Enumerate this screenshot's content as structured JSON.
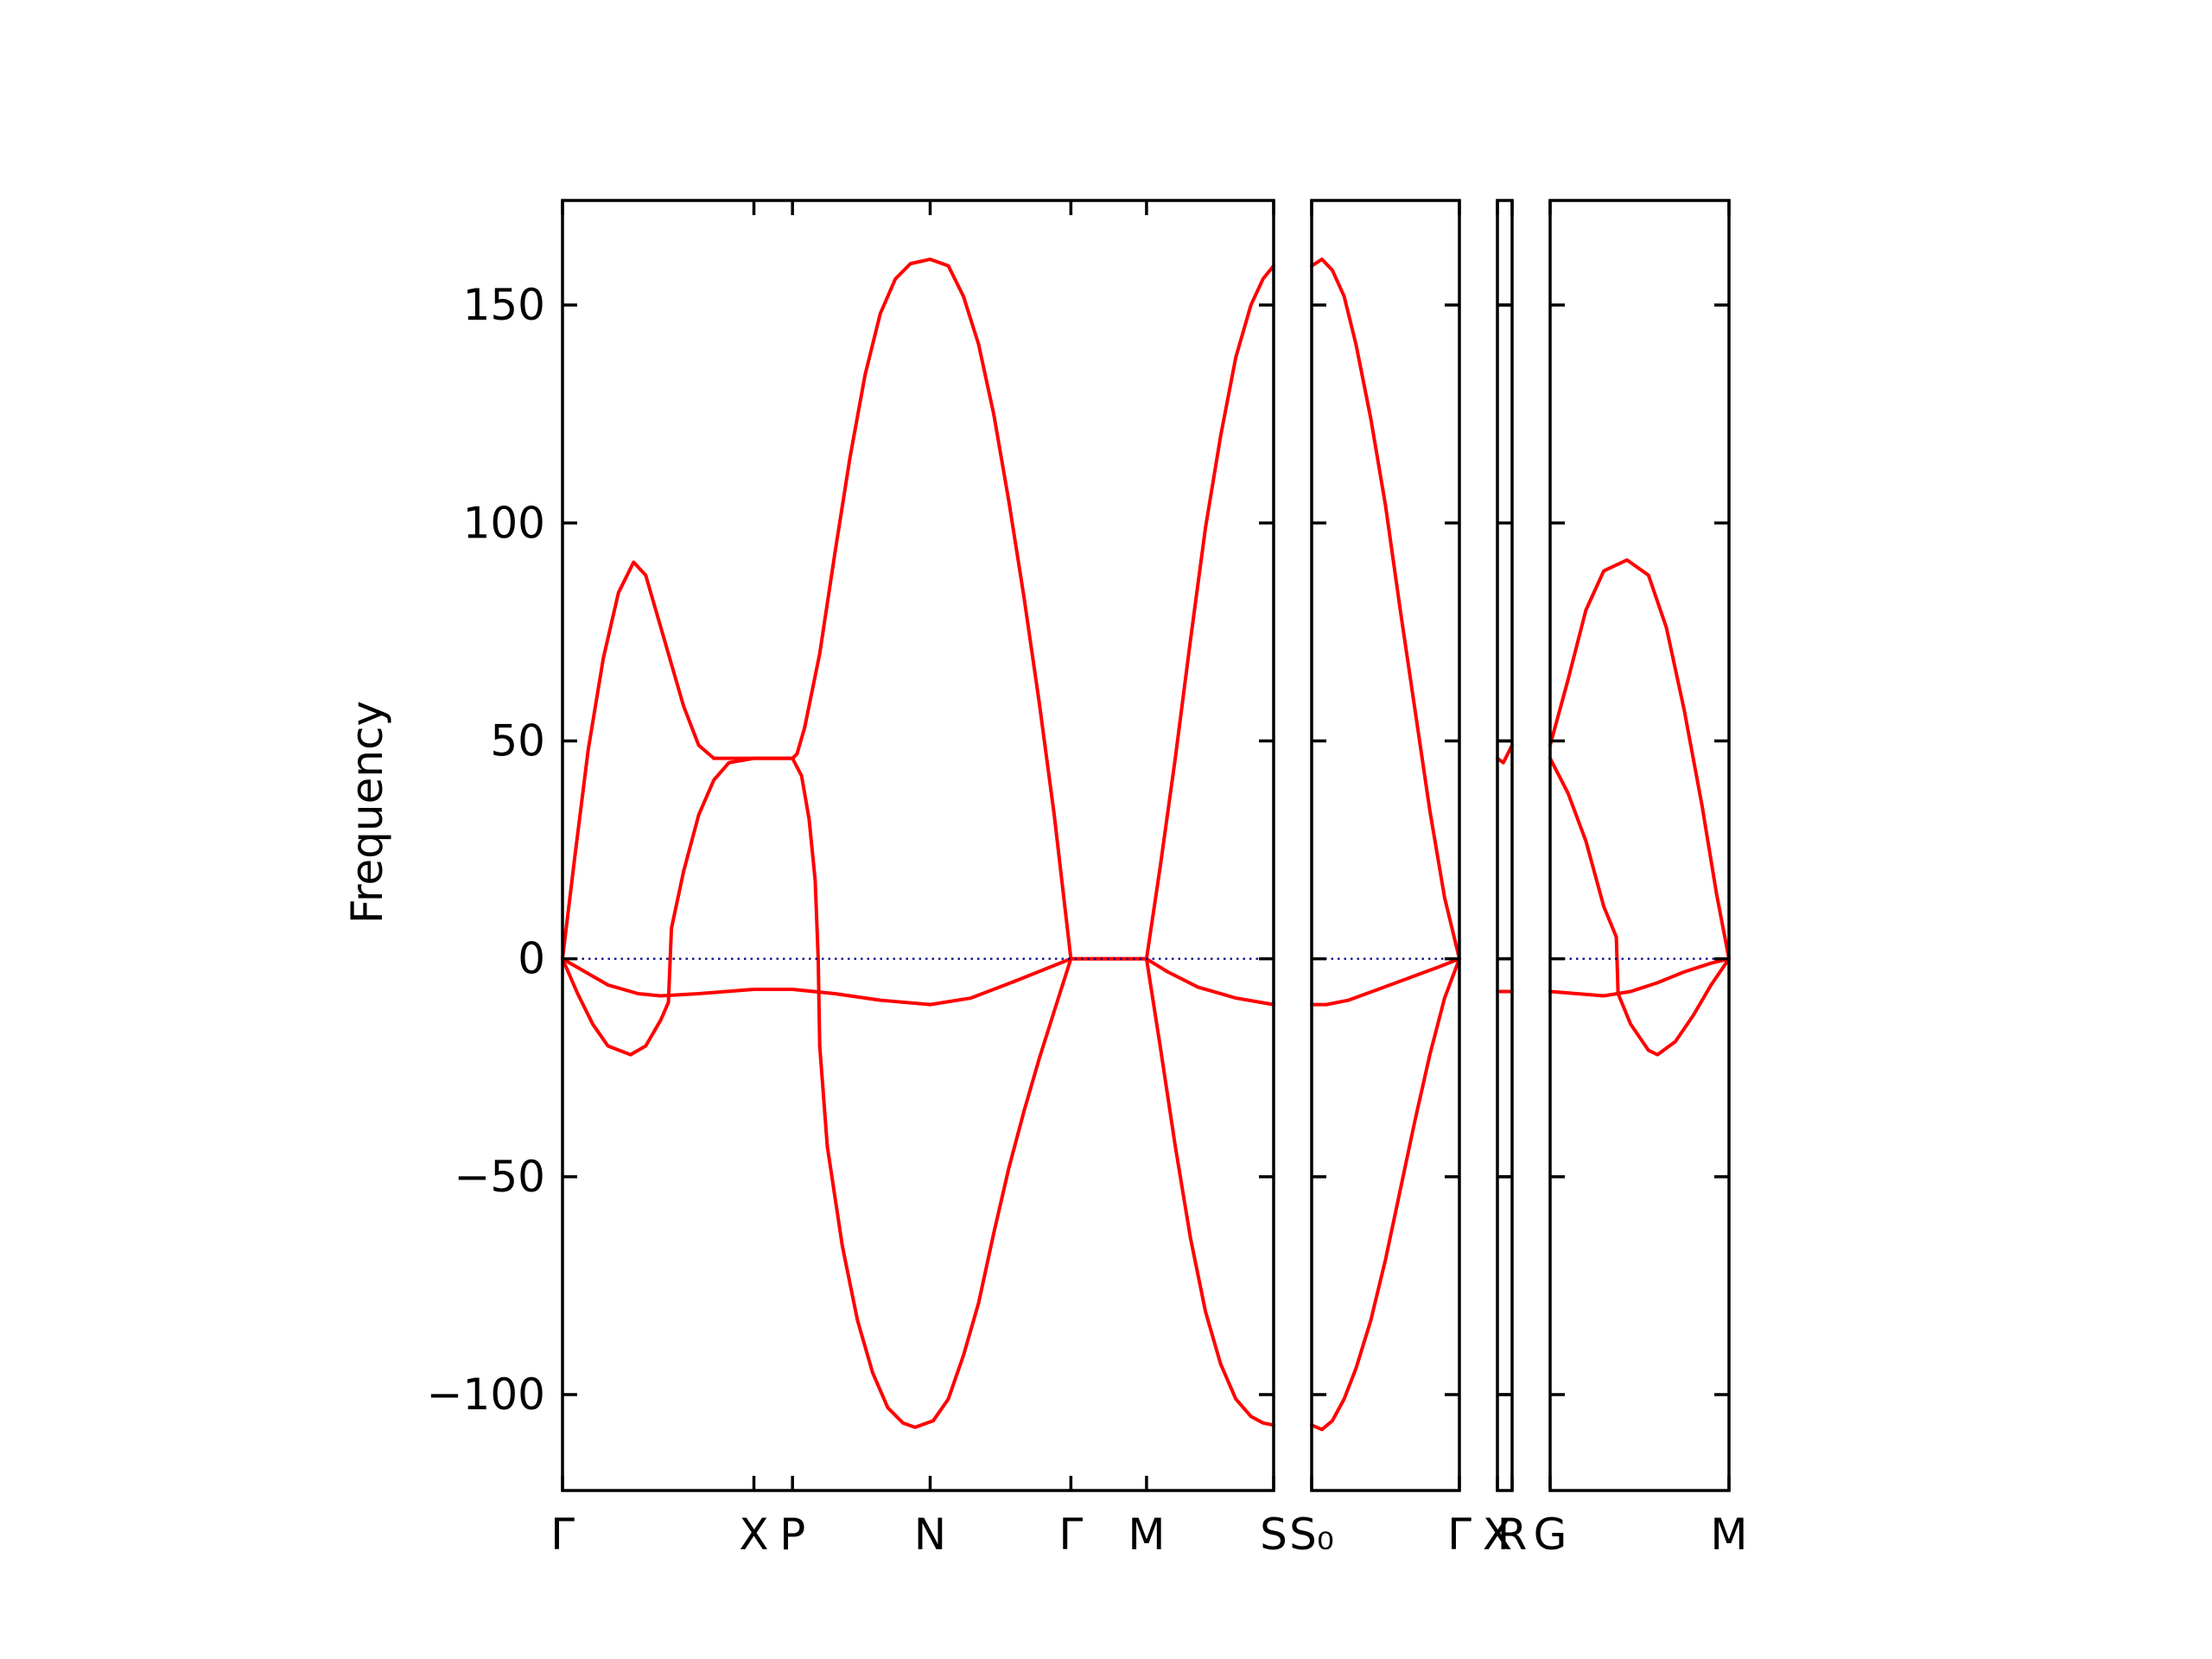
{
  "chart_data": {
    "type": "line",
    "title": "",
    "xlabel": "",
    "ylabel": "Frequency",
    "ylim": [
      -122,
      174
    ],
    "yticks": [
      -100,
      -50,
      0,
      50,
      100,
      150
    ],
    "ytick_labels": [
      "−100",
      "−50",
      "0",
      "50",
      "100",
      "150"
    ],
    "grid": false,
    "zero_line": true,
    "colors": {
      "bands": "#ff0000",
      "zero_line": "#000080",
      "axes": "#000000"
    },
    "panels": [
      {
        "xlim": [
          0,
          4.7
        ],
        "ticks": [
          {
            "x": 0,
            "label": "Γ"
          },
          {
            "x": 1.265,
            "label": "X"
          },
          {
            "x": 1.52,
            "label": "P"
          },
          {
            "x": 2.43,
            "label": "N"
          },
          {
            "x": 3.36,
            "label": "Γ"
          },
          {
            "x": 3.86,
            "label": "M"
          },
          {
            "x": 4.7,
            "label": "S"
          }
        ],
        "series": [
          {
            "points": [
              [
                0,
                0
              ],
              [
                0.08,
                23
              ],
              [
                0.17,
                48
              ],
              [
                0.27,
                69
              ],
              [
                0.37,
                84
              ],
              [
                0.47,
                91
              ],
              [
                0.55,
                88
              ],
              [
                0.65,
                76
              ],
              [
                0.8,
                58
              ],
              [
                0.9,
                49
              ],
              [
                1.0,
                46
              ]
            ]
          },
          {
            "points": [
              [
                0,
                0
              ],
              [
                0.1,
                -8
              ],
              [
                0.2,
                -15
              ],
              [
                0.3,
                -20
              ],
              [
                0.45,
                -22
              ],
              [
                0.55,
                -20
              ],
              [
                0.65,
                -14
              ],
              [
                0.7,
                -10
              ],
              [
                0.72,
                7
              ],
              [
                0.8,
                20
              ],
              [
                0.9,
                33
              ],
              [
                1.0,
                41
              ],
              [
                1.1,
                45
              ],
              [
                1.265,
                46
              ],
              [
                1.52,
                46
              ],
              [
                1.58,
                42
              ],
              [
                1.63,
                32
              ],
              [
                1.67,
                18
              ],
              [
                1.69,
                0
              ],
              [
                1.7,
                -20
              ]
            ]
          },
          {
            "points": [
              [
                1.0,
                46
              ],
              [
                1.265,
                46
              ],
              [
                1.52,
                46
              ],
              [
                1.55,
                47
              ],
              [
                1.6,
                53
              ],
              [
                1.7,
                70
              ],
              [
                1.8,
                93
              ],
              [
                1.9,
                115
              ],
              [
                2.0,
                134
              ],
              [
                2.1,
                148
              ],
              [
                2.2,
                156
              ],
              [
                2.3,
                159.5
              ],
              [
                2.43,
                160.5
              ],
              [
                2.55,
                159
              ],
              [
                2.65,
                152
              ],
              [
                2.75,
                141
              ],
              [
                2.85,
                125
              ],
              [
                2.95,
                105
              ],
              [
                3.05,
                83
              ],
              [
                3.15,
                59
              ],
              [
                3.25,
                33
              ],
              [
                3.36,
                0
              ]
            ]
          },
          {
            "points": [
              [
                1.7,
                -20
              ],
              [
                1.75,
                -43
              ],
              [
                1.85,
                -66
              ],
              [
                1.95,
                -83
              ],
              [
                2.05,
                -95
              ],
              [
                2.15,
                -103
              ],
              [
                2.25,
                -106.5
              ],
              [
                2.33,
                -107.5
              ],
              [
                2.45,
                -106
              ],
              [
                2.55,
                -101
              ],
              [
                2.65,
                -91
              ],
              [
                2.75,
                -79
              ],
              [
                2.85,
                -63
              ],
              [
                2.95,
                -48
              ],
              [
                3.05,
                -35
              ],
              [
                3.15,
                -23
              ],
              [
                3.25,
                -12
              ],
              [
                3.36,
                0
              ]
            ]
          },
          {
            "points": [
              [
                0,
                0
              ],
              [
                0.15,
                -3
              ],
              [
                0.3,
                -6
              ],
              [
                0.5,
                -8
              ],
              [
                0.65,
                -8.5
              ],
              [
                0.9,
                -8
              ],
              [
                1.265,
                -7
              ],
              [
                1.52,
                -7
              ],
              [
                1.8,
                -8
              ],
              [
                2.1,
                -9.5
              ],
              [
                2.43,
                -10.5
              ],
              [
                2.7,
                -9
              ],
              [
                3.0,
                -5
              ],
              [
                3.36,
                0
              ],
              [
                3.86,
                0
              ],
              [
                4.0,
                -3
              ],
              [
                4.2,
                -6.5
              ],
              [
                4.45,
                -9
              ],
              [
                4.7,
                -10.5
              ]
            ]
          },
          {
            "points": [
              [
                3.36,
                0
              ],
              [
                3.86,
                0
              ],
              [
                3.95,
                21
              ],
              [
                4.05,
                46
              ],
              [
                4.15,
                73
              ],
              [
                4.25,
                99
              ],
              [
                4.35,
                120
              ],
              [
                4.45,
                138
              ],
              [
                4.55,
                150
              ],
              [
                4.63,
                156
              ],
              [
                4.7,
                159
              ]
            ]
          },
          {
            "points": [
              [
                3.86,
                0
              ],
              [
                3.95,
                -20
              ],
              [
                4.05,
                -43
              ],
              [
                4.15,
                -64
              ],
              [
                4.25,
                -81
              ],
              [
                4.35,
                -93
              ],
              [
                4.45,
                -101
              ],
              [
                4.55,
                -105
              ],
              [
                4.63,
                -106.5
              ],
              [
                4.7,
                -107
              ]
            ]
          },
          {
            "points": [
              [
                0,
                0
              ],
              [
                4.7,
                0
              ]
            ],
            "role": "zero-line"
          }
        ]
      },
      {
        "xlim": [
          0,
          1
        ],
        "ticks": [
          {
            "x": 0,
            "label": "S₀"
          },
          {
            "x": 1,
            "label": "Γ"
          }
        ],
        "series": [
          {
            "points": [
              [
                0,
                159
              ],
              [
                0.07,
                160.5
              ],
              [
                0.14,
                158
              ],
              [
                0.22,
                152
              ],
              [
                0.3,
                141
              ],
              [
                0.4,
                124
              ],
              [
                0.5,
                104
              ],
              [
                0.6,
                80
              ],
              [
                0.7,
                57
              ],
              [
                0.8,
                34
              ],
              [
                0.9,
                14
              ],
              [
                1,
                0
              ]
            ]
          },
          {
            "points": [
              [
                0,
                -107
              ],
              [
                0.07,
                -108
              ],
              [
                0.14,
                -106
              ],
              [
                0.22,
                -101
              ],
              [
                0.3,
                -94
              ],
              [
                0.4,
                -83
              ],
              [
                0.5,
                -69
              ],
              [
                0.6,
                -53
              ],
              [
                0.7,
                -37
              ],
              [
                0.8,
                -22
              ],
              [
                0.9,
                -9
              ],
              [
                1,
                0
              ]
            ]
          },
          {
            "points": [
              [
                0,
                -10.5
              ],
              [
                0.1,
                -10.5
              ],
              [
                0.25,
                -9.5
              ],
              [
                0.45,
                -7
              ],
              [
                0.65,
                -4.5
              ],
              [
                0.85,
                -2
              ],
              [
                1,
                0
              ]
            ]
          },
          {
            "points": [
              [
                0,
                0
              ],
              [
                1,
                0
              ]
            ],
            "role": "zero-line"
          }
        ]
      },
      {
        "xlim": [
          0,
          1
        ],
        "ticks": [
          {
            "x": 0,
            "label": "X"
          },
          {
            "x": 1,
            "label": "R"
          }
        ],
        "series": [
          {
            "points": [
              [
                0,
                46
              ],
              [
                0.4,
                45
              ],
              [
                1,
                49
              ]
            ]
          },
          {
            "points": [
              [
                0,
                -7.5
              ],
              [
                1,
                -7.5
              ]
            ]
          },
          {
            "points": [
              [
                0,
                0
              ],
              [
                1,
                0
              ]
            ],
            "role": "zero-line"
          }
        ]
      },
      {
        "xlim": [
          0,
          1
        ],
        "ticks": [
          {
            "x": 0,
            "label": "G"
          },
          {
            "x": 1,
            "label": "M"
          }
        ],
        "series": [
          {
            "points": [
              [
                0,
                49
              ],
              [
                0.1,
                64
              ],
              [
                0.2,
                80
              ],
              [
                0.3,
                89
              ],
              [
                0.43,
                91.5
              ],
              [
                0.55,
                88
              ],
              [
                0.65,
                76
              ],
              [
                0.75,
                57
              ],
              [
                0.85,
                35
              ],
              [
                0.93,
                15
              ],
              [
                1,
                0
              ]
            ]
          },
          {
            "points": [
              [
                0,
                46
              ],
              [
                0.1,
                38
              ],
              [
                0.2,
                27
              ],
              [
                0.3,
                12
              ],
              [
                0.37,
                5
              ],
              [
                0.38,
                -8
              ]
            ]
          },
          {
            "points": [
              [
                0,
                -7.5
              ],
              [
                0.15,
                -8
              ],
              [
                0.3,
                -8.5
              ],
              [
                0.45,
                -7.5
              ],
              [
                0.6,
                -5.5
              ],
              [
                0.75,
                -3
              ],
              [
                0.9,
                -1
              ],
              [
                1,
                0
              ]
            ]
          },
          {
            "points": [
              [
                0.38,
                -8
              ],
              [
                0.45,
                -15
              ],
              [
                0.55,
                -21
              ],
              [
                0.6,
                -22
              ],
              [
                0.7,
                -19
              ],
              [
                0.8,
                -13
              ],
              [
                0.9,
                -6
              ],
              [
                1,
                0
              ]
            ]
          },
          {
            "points": [
              [
                0,
                0
              ],
              [
                1,
                0
              ]
            ],
            "role": "zero-line"
          }
        ]
      }
    ]
  }
}
